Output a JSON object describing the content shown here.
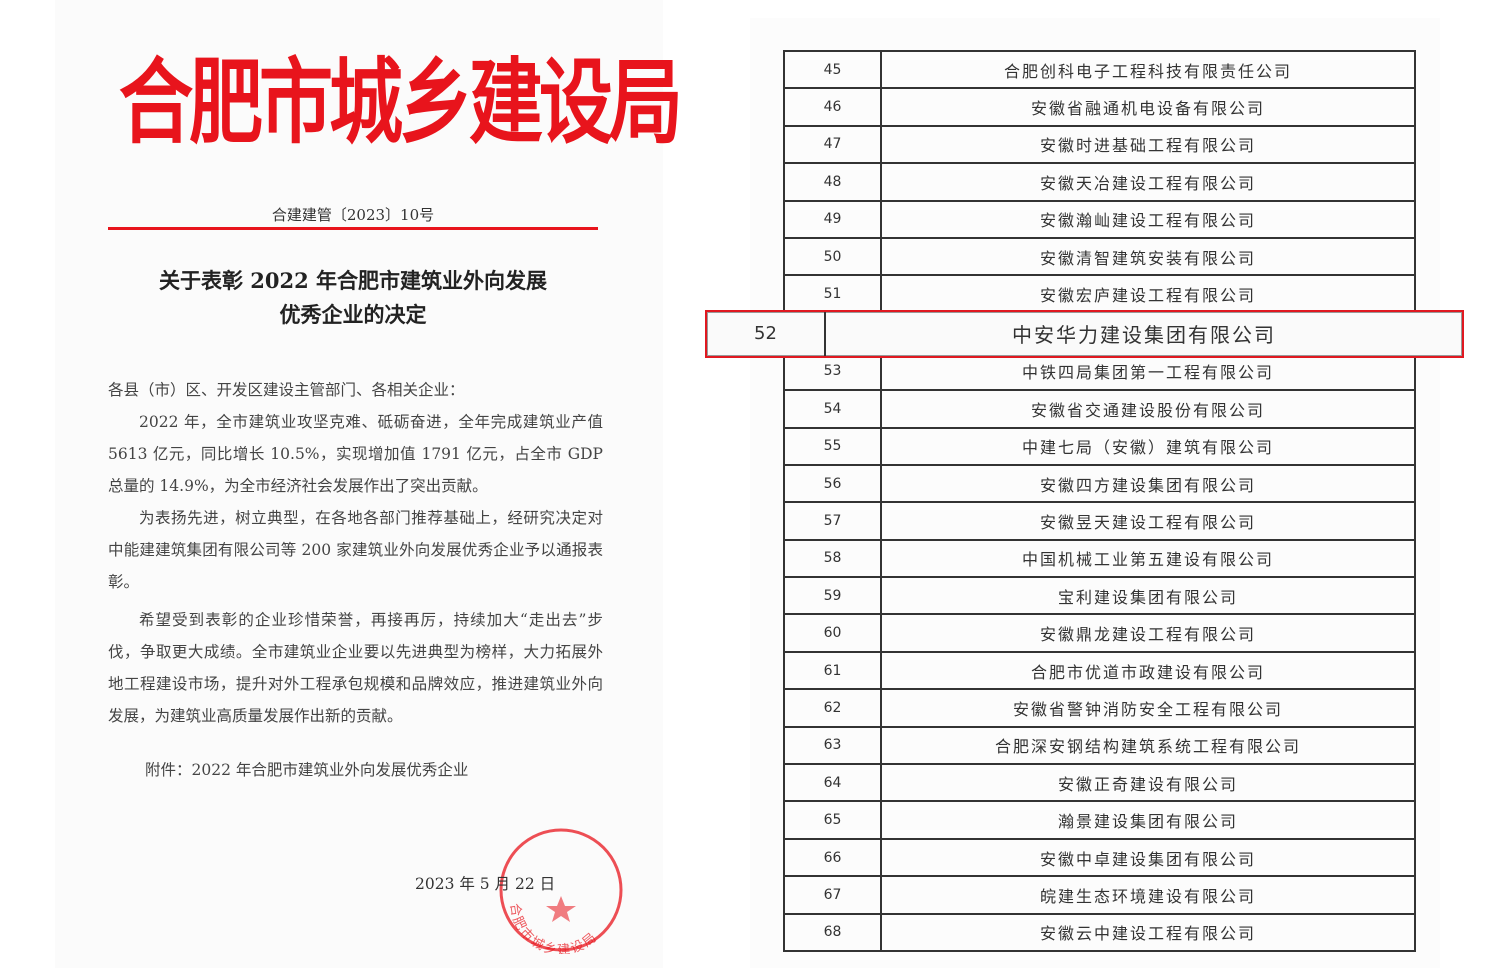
{
  "letter": {
    "organization": "合肥市城乡建设局",
    "doc_number": "合建建管〔2023〕10号",
    "title_line1": "关于表彰 2022 年合肥市建筑业外向发展",
    "title_line2": "优秀企业的决定",
    "salutation": "各县（市）区、开发区建设主管部门、各相关企业：",
    "para1": "2022 年，全市建筑业攻坚克难、砥砺奋进，全年完成建筑业产值 5613 亿元，同比增长 10.5%，实现增加值 1791 亿元，占全市 GDP 总量的 14.9%，为全市经济社会发展作出了突出贡献。",
    "para2": "为表扬先进，树立典型，在各地各部门推荐基础上，经研究决定对中能建建筑集团有限公司等 200 家建筑业外向发展优秀企业予以通报表彰。",
    "para3": "希望受到表彰的企业珍惜荣誉，再接再厉，持续加大“走出去”步伐，争取更大成绩。全市建筑业企业要以先进典型为榜样，大力拓展外地工程建设市场，提升对外工程承包规模和品牌效应，推进建筑业外向发展，为建筑业高质量发展作出新的贡献。",
    "attachment": "附件：2022 年合肥市建筑业外向发展优秀企业",
    "date": "2023 年 5 月 22 日",
    "stamp_text": "合肥市城乡建设局",
    "accent_color": "#e8141c"
  },
  "table": {
    "highlight_color": "#e01820",
    "highlighted_number": "52",
    "rows": [
      {
        "no": "45",
        "name": "合肥创科电子工程科技有限责任公司"
      },
      {
        "no": "46",
        "name": "安徽省融通机电设备有限公司"
      },
      {
        "no": "47",
        "name": "安徽时进基础工程有限公司"
      },
      {
        "no": "48",
        "name": "安徽天冶建设工程有限公司"
      },
      {
        "no": "49",
        "name": "安徽瀚屾建设工程有限公司"
      },
      {
        "no": "50",
        "name": "安徽清智建筑安装有限公司"
      },
      {
        "no": "51",
        "name": "安徽宏庐建设工程有限公司"
      },
      {
        "no": "52",
        "name": "中安华力建设集团有限公司"
      },
      {
        "no": "53",
        "name": "中铁四局集团第一工程有限公司"
      },
      {
        "no": "54",
        "name": "安徽省交通建设股份有限公司"
      },
      {
        "no": "55",
        "name": "中建七局（安徽）建筑有限公司"
      },
      {
        "no": "56",
        "name": "安徽四方建设集团有限公司"
      },
      {
        "no": "57",
        "name": "安徽昱天建设工程有限公司"
      },
      {
        "no": "58",
        "name": "中国机械工业第五建设有限公司"
      },
      {
        "no": "59",
        "name": "宝利建设集团有限公司"
      },
      {
        "no": "60",
        "name": "安徽鼎龙建设工程有限公司"
      },
      {
        "no": "61",
        "name": "合肥市优道市政建设有限公司"
      },
      {
        "no": "62",
        "name": "安徽省警钟消防安全工程有限公司"
      },
      {
        "no": "63",
        "name": "合肥深安钢结构建筑系统工程有限公司"
      },
      {
        "no": "64",
        "name": "安徽正奇建设有限公司"
      },
      {
        "no": "65",
        "name": "瀚景建设集团有限公司"
      },
      {
        "no": "66",
        "name": "安徽中卓建设集团有限公司"
      },
      {
        "no": "67",
        "name": "皖建生态环境建设有限公司"
      },
      {
        "no": "68",
        "name": "安徽云中建设工程有限公司"
      }
    ]
  }
}
